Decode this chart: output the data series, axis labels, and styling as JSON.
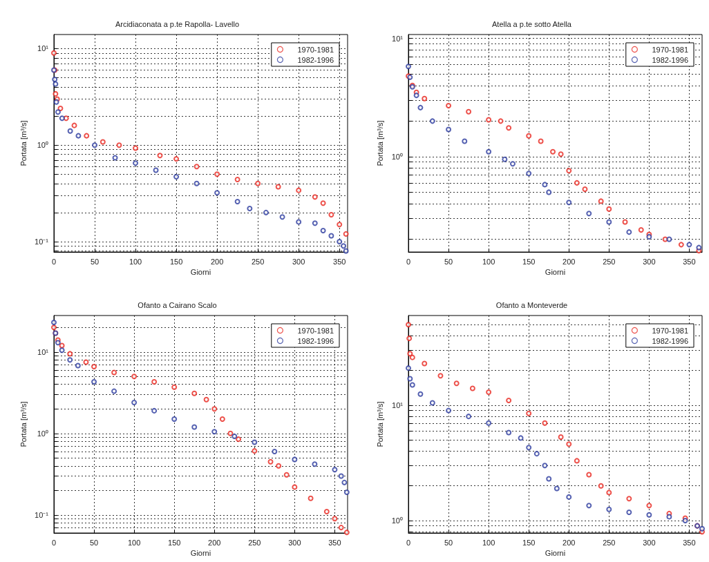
{
  "chart_data": [
    {
      "type": "scatter",
      "title": "Arcidiaconata a p.te Rapolla- Lavello",
      "xlabel": "Giorni",
      "ylabel": "Portata [m³/s]",
      "log": "y",
      "grid": true,
      "legend": "top right",
      "marker": "circle",
      "xlim": [
        0,
        360
      ],
      "xticks": [
        0,
        50,
        100,
        150,
        200,
        250,
        300,
        350
      ],
      "ylim": [
        0.078,
        14
      ],
      "yticks": [
        {
          "value": 0.08,
          "label": null
        },
        {
          "value": 0.09,
          "label": null
        },
        {
          "value": 0.1,
          "label": "10⁻¹"
        },
        {
          "value": 0.2,
          "label": null
        },
        {
          "value": 0.3,
          "label": null
        },
        {
          "value": 0.4,
          "label": null
        },
        {
          "value": 0.5,
          "label": null
        },
        {
          "value": 0.6,
          "label": null
        },
        {
          "value": 0.7,
          "label": null
        },
        {
          "value": 0.8,
          "label": null
        },
        {
          "value": 0.9,
          "label": null
        },
        {
          "value": 1,
          "label": "10⁰"
        },
        {
          "value": 2,
          "label": null
        },
        {
          "value": 3,
          "label": null
        },
        {
          "value": 4,
          "label": null
        },
        {
          "value": 5,
          "label": null
        },
        {
          "value": 6,
          "label": null
        },
        {
          "value": 7,
          "label": null
        },
        {
          "value": 8,
          "label": null
        },
        {
          "value": 9,
          "label": null
        },
        {
          "value": 10,
          "label": "10¹"
        }
      ],
      "series": [
        {
          "name": "1970-1981",
          "color": "#e8261e",
          "x": [
            0,
            1,
            2,
            4,
            8,
            15,
            25,
            40,
            60,
            80,
            100,
            130,
            150,
            175,
            200,
            225,
            250,
            275,
            300,
            320,
            330,
            340,
            350,
            358
          ],
          "values": [
            9.0,
            6.0,
            3.4,
            3.0,
            2.4,
            1.9,
            1.6,
            1.25,
            1.08,
            1.0,
            0.93,
            0.78,
            0.72,
            0.6,
            0.5,
            0.44,
            0.4,
            0.37,
            0.34,
            0.29,
            0.25,
            0.19,
            0.15,
            0.12
          ]
        },
        {
          "name": "1982-1996",
          "color": "#2b3a9e",
          "x": [
            0,
            1,
            2,
            3,
            5,
            10,
            20,
            30,
            50,
            75,
            100,
            125,
            150,
            175,
            200,
            225,
            240,
            260,
            280,
            300,
            320,
            330,
            340,
            350,
            355,
            358
          ],
          "values": [
            6.0,
            4.8,
            4.3,
            2.8,
            2.2,
            1.9,
            1.4,
            1.25,
            1.0,
            0.74,
            0.65,
            0.55,
            0.47,
            0.4,
            0.32,
            0.26,
            0.22,
            0.2,
            0.18,
            0.16,
            0.155,
            0.13,
            0.115,
            0.1,
            0.09,
            0.08
          ]
        }
      ]
    },
    {
      "type": "scatter",
      "title": "Atella a p.te sotto Atella",
      "xlabel": "Giorni",
      "ylabel": "Portata [m³/s]",
      "log": "y",
      "grid": true,
      "legend": "top right",
      "marker": "circle",
      "xlim": [
        0,
        366
      ],
      "xticks": [
        0,
        50,
        100,
        150,
        200,
        250,
        300,
        350
      ],
      "ylim": [
        0.156,
        10.8
      ],
      "yticks": [
        {
          "value": 0.2,
          "label": null
        },
        {
          "value": 0.3,
          "label": null
        },
        {
          "value": 0.4,
          "label": null
        },
        {
          "value": 0.5,
          "label": null
        },
        {
          "value": 0.6,
          "label": null
        },
        {
          "value": 0.7,
          "label": null
        },
        {
          "value": 0.8,
          "label": null
        },
        {
          "value": 0.9,
          "label": null
        },
        {
          "value": 1,
          "label": "10⁰"
        },
        {
          "value": 2,
          "label": null
        },
        {
          "value": 3,
          "label": null
        },
        {
          "value": 4,
          "label": null
        },
        {
          "value": 5,
          "label": null
        },
        {
          "value": 6,
          "label": null
        },
        {
          "value": 7,
          "label": null
        },
        {
          "value": 8,
          "label": null
        },
        {
          "value": 9,
          "label": null
        },
        {
          "value": 10,
          "label": "10¹"
        }
      ],
      "series": [
        {
          "name": "1970-1981",
          "color": "#e8261e",
          "x": [
            0,
            5,
            10,
            20,
            50,
            75,
            100,
            115,
            125,
            150,
            165,
            180,
            190,
            200,
            210,
            220,
            240,
            250,
            270,
            290,
            300,
            320,
            340,
            362
          ],
          "values": [
            4.8,
            4.0,
            3.5,
            3.1,
            2.7,
            2.4,
            2.05,
            2.0,
            1.75,
            1.5,
            1.35,
            1.1,
            1.05,
            0.76,
            0.6,
            0.53,
            0.42,
            0.36,
            0.28,
            0.24,
            0.22,
            0.2,
            0.18,
            0.16
          ]
        },
        {
          "name": "1982-1996",
          "color": "#2b3a9e",
          "x": [
            0,
            2,
            5,
            10,
            15,
            30,
            50,
            70,
            100,
            120,
            130,
            150,
            170,
            175,
            200,
            225,
            250,
            275,
            300,
            325,
            350,
            362
          ],
          "values": [
            5.8,
            4.7,
            3.9,
            3.3,
            2.6,
            2.0,
            1.7,
            1.35,
            1.1,
            0.95,
            0.87,
            0.72,
            0.58,
            0.5,
            0.41,
            0.33,
            0.28,
            0.23,
            0.21,
            0.2,
            0.18,
            0.17
          ]
        }
      ]
    },
    {
      "type": "scatter",
      "title": "Ofanto a Cairano Scalo",
      "xlabel": "Giorni",
      "ylabel": "Portata [m³/s]",
      "log": "y",
      "grid": true,
      "legend": "top right",
      "marker": "circle",
      "xlim": [
        0,
        366
      ],
      "xticks": [
        0,
        50,
        100,
        150,
        200,
        250,
        300,
        350
      ],
      "ylim": [
        0.06,
        28
      ],
      "yticks": [
        {
          "value": 0.06,
          "label": null
        },
        {
          "value": 0.07,
          "label": null
        },
        {
          "value": 0.08,
          "label": null
        },
        {
          "value": 0.09,
          "label": null
        },
        {
          "value": 0.1,
          "label": "10⁻¹"
        },
        {
          "value": 0.2,
          "label": null
        },
        {
          "value": 0.3,
          "label": null
        },
        {
          "value": 0.4,
          "label": null
        },
        {
          "value": 0.5,
          "label": null
        },
        {
          "value": 0.6,
          "label": null
        },
        {
          "value": 0.7,
          "label": null
        },
        {
          "value": 0.8,
          "label": null
        },
        {
          "value": 0.9,
          "label": null
        },
        {
          "value": 1,
          "label": "10⁰"
        },
        {
          "value": 2,
          "label": null
        },
        {
          "value": 3,
          "label": null
        },
        {
          "value": 4,
          "label": null
        },
        {
          "value": 5,
          "label": null
        },
        {
          "value": 6,
          "label": null
        },
        {
          "value": 7,
          "label": null
        },
        {
          "value": 8,
          "label": null
        },
        {
          "value": 9,
          "label": null
        },
        {
          "value": 10,
          "label": "10¹"
        },
        {
          "value": 20,
          "label": null
        }
      ],
      "series": [
        {
          "name": "1970-1981",
          "color": "#e8261e",
          "x": [
            0,
            2,
            5,
            10,
            20,
            40,
            50,
            75,
            100,
            125,
            150,
            175,
            190,
            200,
            210,
            220,
            230,
            250,
            270,
            280,
            290,
            300,
            320,
            340,
            350,
            358,
            365
          ],
          "values": [
            20,
            17,
            14,
            12,
            9.5,
            7.5,
            6.6,
            5.6,
            5.0,
            4.3,
            3.7,
            3.1,
            2.6,
            2.0,
            1.5,
            1.0,
            0.85,
            0.61,
            0.45,
            0.4,
            0.31,
            0.22,
            0.16,
            0.11,
            0.09,
            0.07,
            0.061
          ]
        },
        {
          "name": "1982-1996",
          "color": "#2b3a9e",
          "x": [
            0,
            2,
            5,
            10,
            20,
            30,
            50,
            75,
            100,
            125,
            150,
            175,
            200,
            225,
            250,
            275,
            300,
            325,
            350,
            358,
            362,
            365
          ],
          "values": [
            23,
            17,
            13,
            10.5,
            8,
            6.8,
            4.3,
            3.3,
            2.4,
            1.9,
            1.5,
            1.2,
            1.05,
            0.92,
            0.78,
            0.6,
            0.48,
            0.42,
            0.36,
            0.3,
            0.25,
            0.19
          ]
        }
      ]
    },
    {
      "type": "scatter",
      "title": "Ofanto a Monteverde",
      "xlabel": "Giorni",
      "ylabel": "Portata [m³/s]",
      "log": "y",
      "grid": true,
      "legend": "top right",
      "marker": "circle",
      "xlim": [
        0,
        366
      ],
      "xticks": [
        0,
        50,
        100,
        150,
        200,
        250,
        300,
        350
      ],
      "ylim": [
        0.78,
        60
      ],
      "yticks": [
        {
          "value": 0.8,
          "label": null
        },
        {
          "value": 0.9,
          "label": null
        },
        {
          "value": 1,
          "label": "10⁰"
        },
        {
          "value": 2,
          "label": null
        },
        {
          "value": 3,
          "label": null
        },
        {
          "value": 4,
          "label": null
        },
        {
          "value": 5,
          "label": null
        },
        {
          "value": 6,
          "label": null
        },
        {
          "value": 7,
          "label": null
        },
        {
          "value": 8,
          "label": null
        },
        {
          "value": 9,
          "label": null
        },
        {
          "value": 10,
          "label": "10¹"
        },
        {
          "value": 20,
          "label": null
        },
        {
          "value": 30,
          "label": null
        },
        {
          "value": 40,
          "label": null
        },
        {
          "value": 50,
          "label": null
        }
      ],
      "series": [
        {
          "name": "1970-1981",
          "color": "#e8261e",
          "x": [
            0,
            1,
            2,
            5,
            20,
            40,
            60,
            80,
            100,
            125,
            150,
            170,
            190,
            200,
            210,
            225,
            240,
            250,
            275,
            300,
            325,
            345,
            360,
            366
          ],
          "values": [
            50,
            38,
            28,
            26,
            23,
            18,
            15.5,
            14,
            13,
            11,
            8.5,
            7,
            5.3,
            4.6,
            3.3,
            2.5,
            2.0,
            1.75,
            1.55,
            1.35,
            1.15,
            1.05,
            0.9,
            0.8
          ]
        },
        {
          "name": "1982-1996",
          "color": "#2b3a9e",
          "x": [
            0,
            2,
            5,
            15,
            30,
            50,
            75,
            100,
            125,
            140,
            150,
            160,
            170,
            175,
            185,
            200,
            225,
            250,
            275,
            300,
            325,
            345,
            360,
            366
          ],
          "values": [
            21,
            17,
            15,
            12.5,
            10.5,
            9.0,
            8.0,
            7.0,
            5.8,
            5.2,
            4.3,
            3.8,
            3.0,
            2.3,
            1.9,
            1.6,
            1.35,
            1.25,
            1.18,
            1.12,
            1.08,
            1.0,
            0.9,
            0.85
          ]
        }
      ]
    }
  ]
}
